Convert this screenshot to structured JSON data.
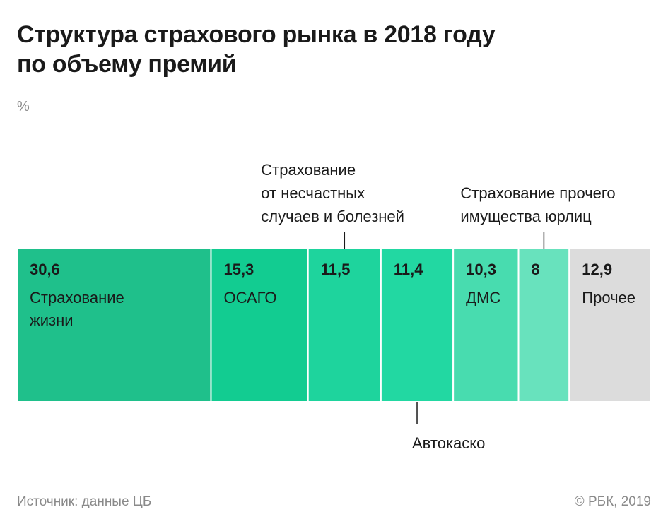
{
  "title_line1": "Структура страхового рынка в 2018 году",
  "title_line2": "по объему премий",
  "unit": "%",
  "source": "Источник: данные ЦБ",
  "credit": "© РБК, 2019",
  "chart_data": {
    "type": "bar",
    "orientation": "horizontal-stacked",
    "title": "Структура страхового рынка в 2018 году по объему премий",
    "unit": "%",
    "segments": [
      {
        "value": 30.6,
        "value_label": "30,6",
        "label_lines": [
          "Страхование",
          "жизни"
        ],
        "color": "#1fc08b"
      },
      {
        "value": 15.3,
        "value_label": "15,3",
        "label_lines": [
          "ОСАГО"
        ],
        "color": "#12cc91"
      },
      {
        "value": 11.5,
        "value_label": "11,5",
        "label_lines": [],
        "color": "#1ed49d",
        "callout": {
          "position": "top",
          "lines": [
            "Страхование",
            "от несчастных",
            "случаев и болезней"
          ]
        }
      },
      {
        "value": 11.4,
        "value_label": "11,4",
        "label_lines": [],
        "color": "#22d8a2",
        "callout": {
          "position": "bottom",
          "lines": [
            "Автокаско"
          ]
        }
      },
      {
        "value": 10.3,
        "value_label": "10,3",
        "label_lines": [
          "ДМС"
        ],
        "color": "#48dcaf"
      },
      {
        "value": 8,
        "value_label": "8",
        "label_lines": [],
        "color": "#68e2bd",
        "callout": {
          "position": "top",
          "lines": [
            "Страхование прочего",
            "имущества юрлиц"
          ]
        }
      },
      {
        "value": 12.9,
        "value_label": "12,9",
        "label_lines": [
          "Прочее"
        ],
        "color": "#dcdcdc"
      }
    ]
  }
}
